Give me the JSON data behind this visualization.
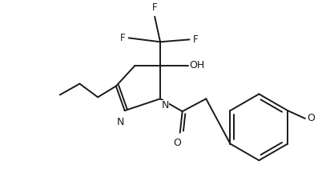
{
  "bg_color": "#ffffff",
  "line_color": "#1a1a1a",
  "line_width": 1.4,
  "font_size": 8.5,
  "xlim": [
    0,
    407
  ],
  "ylim": [
    0,
    216
  ]
}
